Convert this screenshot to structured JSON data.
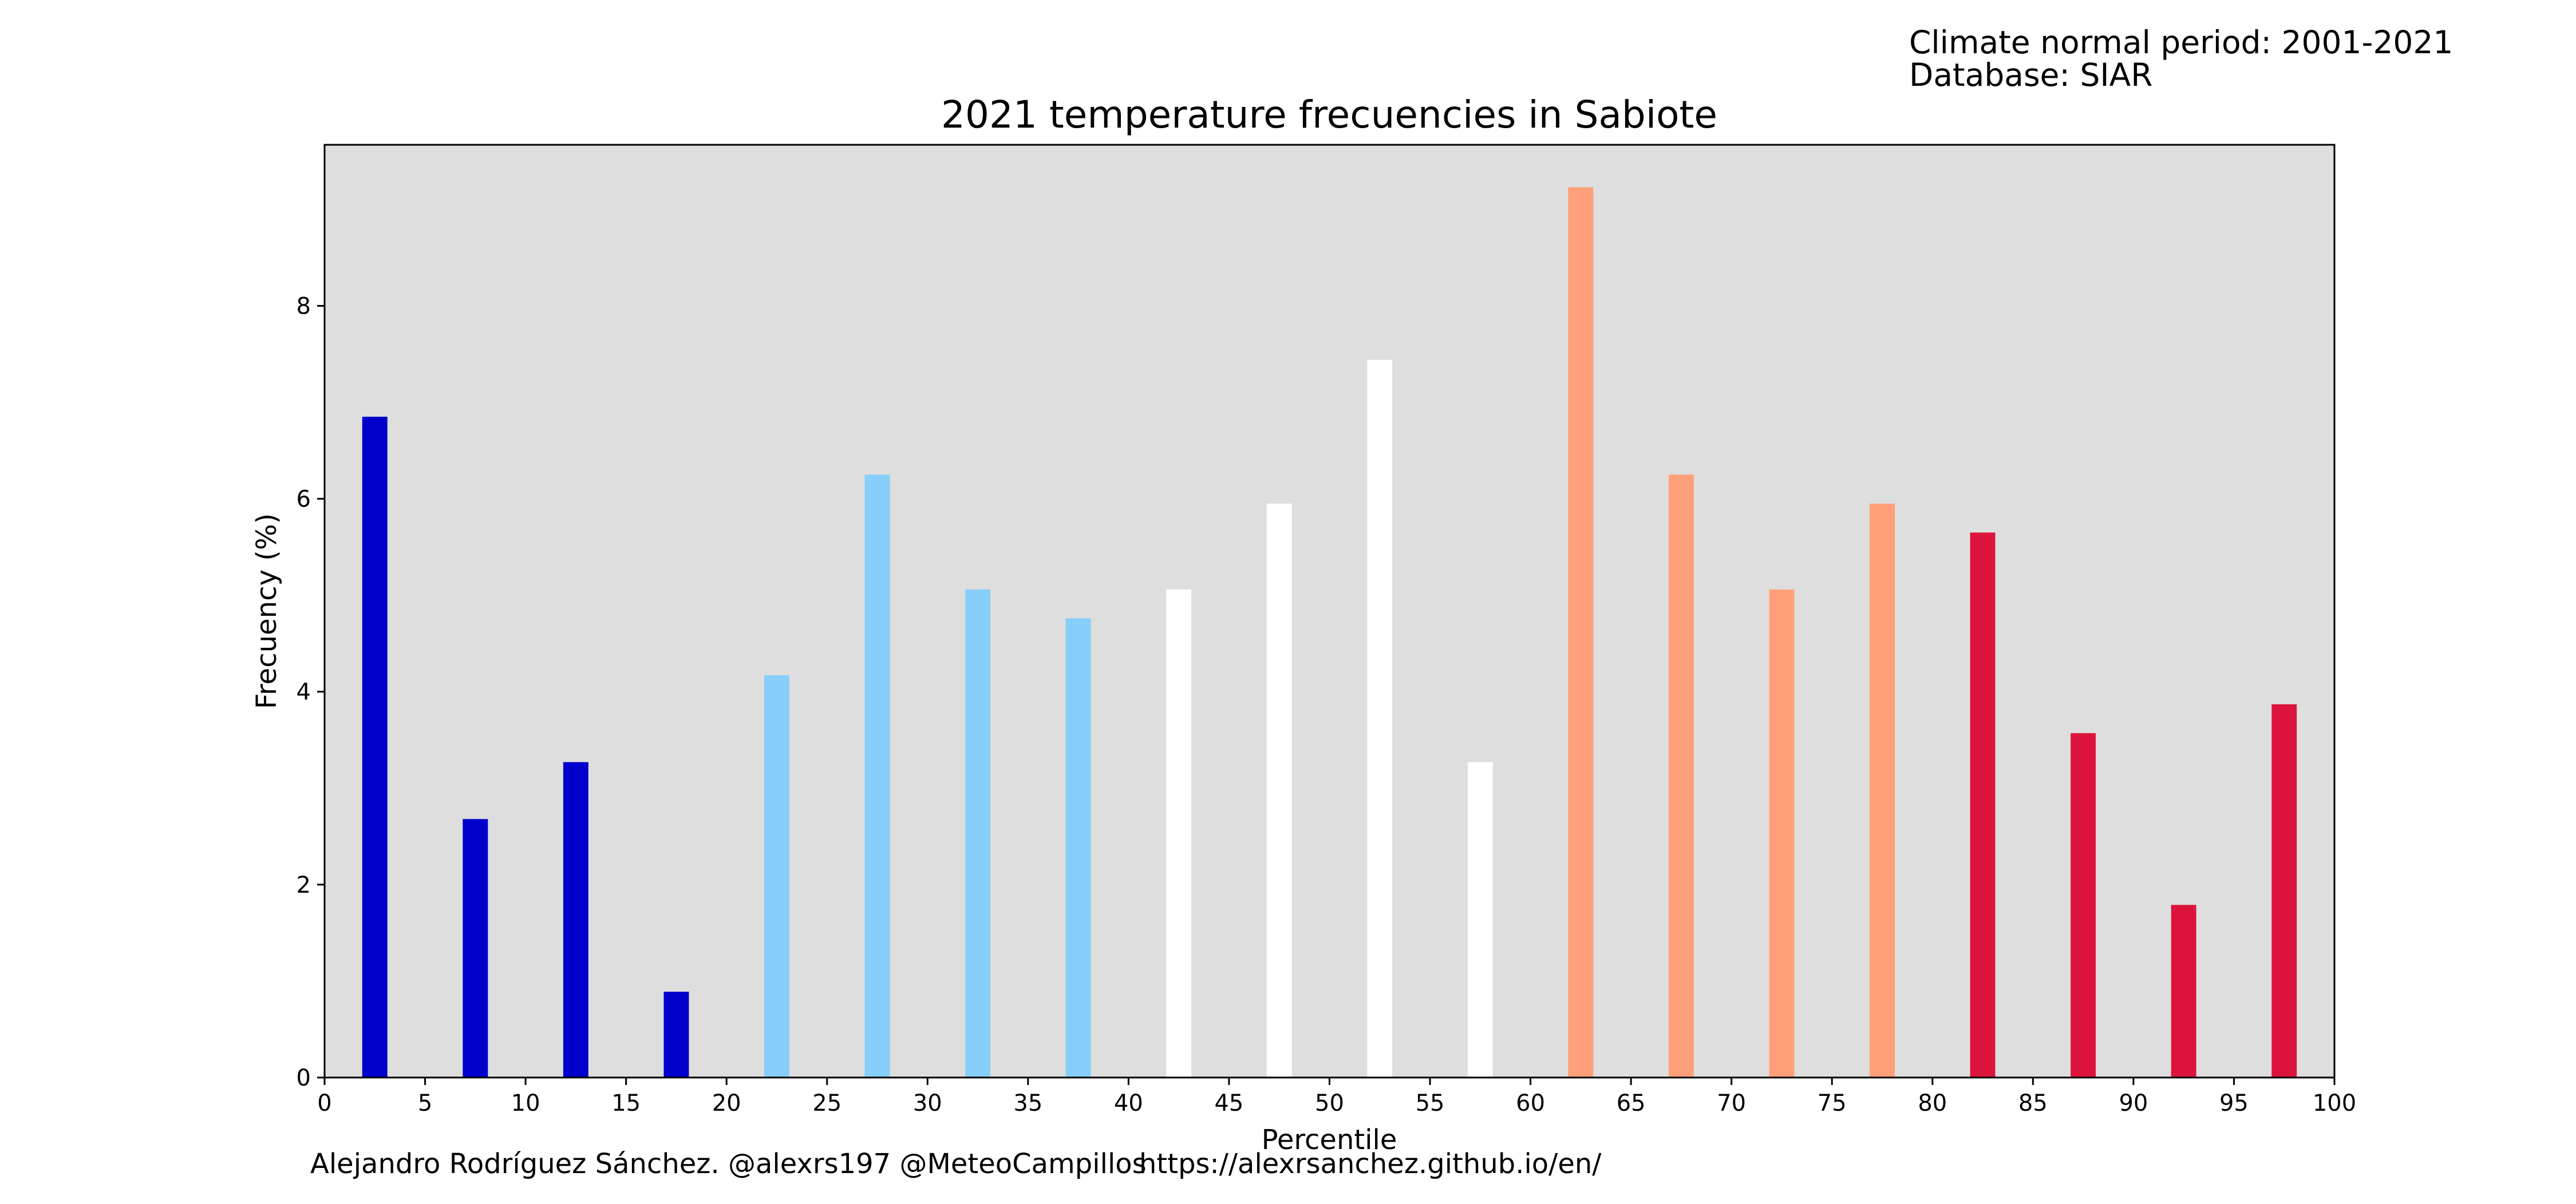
{
  "info_lines": [
    "Climate normal period: 2001-2021",
    "Database: SIAR"
  ],
  "footer": {
    "credit": "Alejandro Rodríguez Sánchez. @alexrs197 @MeteoCampillos",
    "url": "https://alexrsanchez.github.io/en/"
  },
  "colors": {
    "plot_background": "#dedede",
    "frame": "#000000",
    "text": "#000000"
  },
  "chart_data": {
    "type": "bar",
    "title": "2021 temperature frecuencies in Sabiote",
    "xlabel": "Percentile",
    "ylabel": "Frecuency (%)",
    "xlim": [
      0,
      100
    ],
    "ylim": [
      0,
      9.67
    ],
    "x_ticks": [
      0,
      5,
      10,
      15,
      20,
      25,
      30,
      35,
      40,
      45,
      50,
      55,
      60,
      65,
      70,
      75,
      80,
      85,
      90,
      95,
      100
    ],
    "y_ticks": [
      0,
      2,
      4,
      6,
      8
    ],
    "bar_width": 1.25,
    "grid": false,
    "x": [
      2.5,
      7.5,
      12.5,
      17.5,
      22.5,
      27.5,
      32.5,
      37.5,
      42.5,
      47.5,
      52.5,
      57.5,
      62.5,
      67.5,
      72.5,
      77.5,
      82.5,
      87.5,
      92.5,
      97.5
    ],
    "values": [
      6.85,
      2.68,
      3.27,
      0.89,
      4.17,
      6.25,
      5.06,
      4.76,
      5.06,
      5.95,
      7.44,
      3.27,
      9.23,
      6.25,
      5.06,
      5.95,
      5.65,
      3.57,
      1.79,
      3.87
    ],
    "colors": [
      "#0000cd",
      "#0000cd",
      "#0000cd",
      "#0000cd",
      "#87cefa",
      "#87cefa",
      "#87cefa",
      "#87cefa",
      "#ffffff",
      "#ffffff",
      "#ffffff",
      "#ffffff",
      "#ffa07a",
      "#ffa07a",
      "#ffa07a",
      "#ffa07a",
      "#dc143c",
      "#dc143c",
      "#dc143c",
      "#dc143c"
    ]
  }
}
